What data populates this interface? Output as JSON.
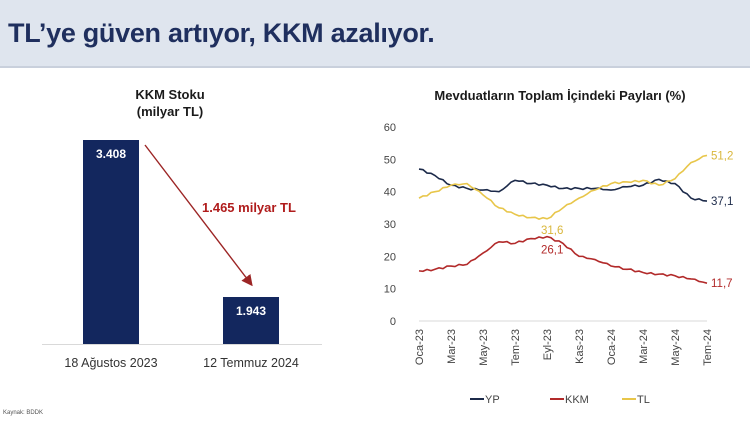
{
  "header": {
    "title": "TL’ye güven artıyor, KKM azalıyor."
  },
  "source": "Kaynak: BDDK",
  "chart_data": [
    {
      "type": "bar",
      "title": "KKM Stoku",
      "subtitle": "(milyar TL)",
      "categories": [
        "18 Ağustos 2023",
        "12 Temmuz 2024"
      ],
      "values": [
        3408,
        1943
      ],
      "data_labels": [
        "3.408",
        "1.943"
      ],
      "annotation": "1.465 milyar TL",
      "colors": {
        "bar": "#13275e",
        "annotation": "#b01c1c"
      }
    },
    {
      "type": "line",
      "title": "Mevduatların Toplam İçindeki Payları (%)",
      "x": [
        "Oca-23",
        "Şub-23",
        "Mar-23",
        "Nis-23",
        "May-23",
        "Haz-23",
        "Tem-23",
        "Ağu-23",
        "Eyl-23",
        "Eki-23",
        "Kas-23",
        "Ara-23",
        "Oca-24",
        "Şub-24",
        "Mar-24",
        "Nis-24",
        "May-24",
        "Haz-24",
        "Tem-24"
      ],
      "xticks": [
        "Oca-23",
        "Mar-23",
        "May-23",
        "Tem-23",
        "Eyl-23",
        "Kas-23",
        "Oca-24",
        "Mar-24",
        "May-24",
        "Tem-24"
      ],
      "ylim": [
        0,
        60
      ],
      "yticks": [
        0,
        10,
        20,
        30,
        40,
        50,
        60
      ],
      "legend": "bottom",
      "series": [
        {
          "name": "YP",
          "color": "#1c2a4a",
          "values": [
            47,
            45,
            42,
            41,
            40.5,
            40,
            43.5,
            42.5,
            42,
            41,
            41,
            41,
            40.5,
            41.5,
            42,
            43.8,
            42.5,
            38,
            37.1
          ]
        },
        {
          "name": "KKM",
          "color": "#b22a2a",
          "values": [
            15.5,
            16,
            17,
            17.5,
            21,
            24.5,
            24,
            25.5,
            26.1,
            24,
            20,
            19,
            17,
            16,
            15,
            14.5,
            14,
            13,
            11.7
          ]
        },
        {
          "name": "TL",
          "color": "#e8c64a",
          "values": [
            38,
            40,
            42,
            42.5,
            39,
            35,
            33,
            32,
            31.6,
            35,
            38,
            40.5,
            42.5,
            43,
            43.5,
            42,
            44,
            49,
            51.2
          ]
        }
      ],
      "annotations": [
        {
          "series": "TL",
          "label": "31,6"
        },
        {
          "series": "KKM",
          "label": "26,1"
        },
        {
          "series": "YP",
          "label": "37,1"
        },
        {
          "series": "KKM",
          "label": "11,7"
        },
        {
          "series": "TL",
          "label": "51,2"
        }
      ]
    }
  ]
}
